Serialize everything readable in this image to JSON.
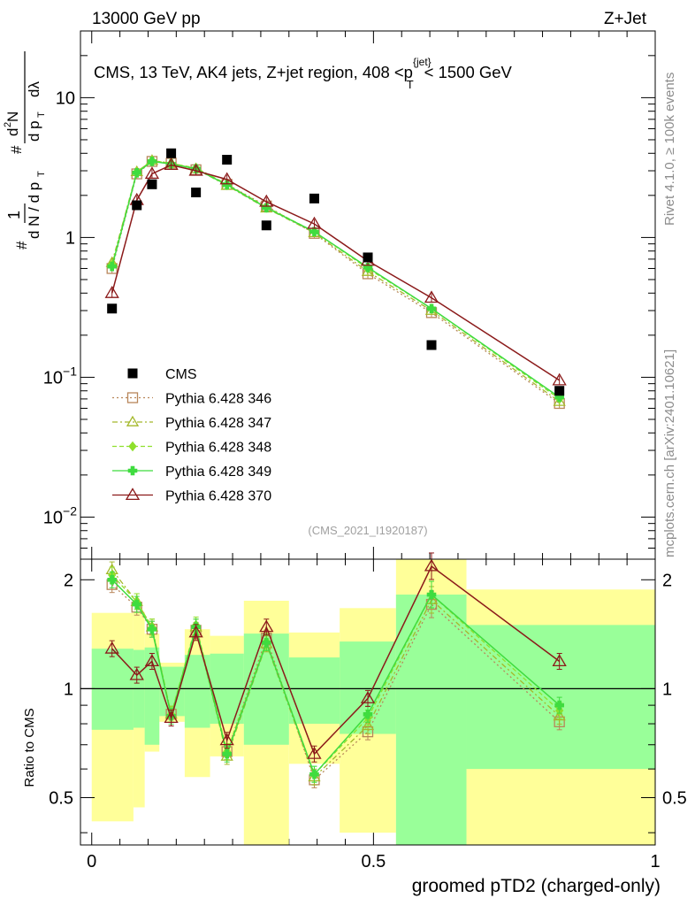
{
  "header": {
    "energy_label": "13000 GeV pp",
    "process_label": "Z+Jet",
    "rivet_label": "Rivet 4.1.0, ≥ 100k events",
    "mcplots_label": "mcplots.cern.ch [arXiv:2401.10621]",
    "analysis_id": "(CMS_2021_I1920187)"
  },
  "colors": {
    "cms": "#000000",
    "p346": "#b8865a",
    "p347": "#a4b82a",
    "p348": "#8fe02c",
    "p349": "#3fdc3f",
    "p370": "#8b1a1a",
    "band_yellow": "#ffff99",
    "band_green": "#99ff99"
  },
  "chart_data": {
    "type": "line",
    "title": "CMS, 13 TeV, AK4 jets, Z+jet region, 408 <p_T^{jet}< 1500 GeV",
    "title_parts": {
      "main": "CMS, 13 TeV, AK4 jets, Z+jet region, 408 <p",
      "sup": "{jet}",
      "sub": "T",
      "tail": "< 1500 GeV"
    },
    "xlabel": "groomed pTD2 (charged-only)",
    "ylabel_main": "1/N dN/dp_T d^2N/dp_T dλ",
    "ylabel_ratio": "Ratio to CMS",
    "xlim": [
      -0.02,
      1.0
    ],
    "ylim_main": [
      0.005,
      30
    ],
    "ylim_ratio": [
      0.37,
      2.28
    ],
    "yscale": "log",
    "x_ticks": [
      0,
      0.5,
      1
    ],
    "x_tick_labels": [
      "0",
      "0.5",
      "1"
    ],
    "main_y_ticks": [
      0.01,
      0.1,
      1,
      10
    ],
    "main_y_tick_labels": [
      {
        "base": "10",
        "exp": "−2"
      },
      {
        "base": "10",
        "exp": "−1"
      },
      {
        "base": "1",
        "exp": ""
      },
      {
        "base": "10",
        "exp": ""
      }
    ],
    "ratio_y_ticks": [
      0.5,
      1,
      2
    ],
    "ratio_y_tick_labels": [
      "0.5",
      "1",
      "2"
    ],
    "cms": {
      "name": "CMS",
      "x": [
        0.036,
        0.08,
        0.107,
        0.141,
        0.185,
        0.24,
        0.31,
        0.395,
        0.49,
        0.603,
        0.83
      ],
      "x_edges": [
        0.0,
        0.074,
        0.094,
        0.12,
        0.165,
        0.21,
        0.27,
        0.35,
        0.44,
        0.54,
        0.665,
        1.0
      ],
      "y": [
        0.31,
        1.7,
        2.4,
        4.0,
        2.1,
        3.6,
        1.22,
        1.9,
        0.72,
        0.17,
        0.08
      ],
      "band_green": [
        [
          0.77,
          1.29
        ],
        [
          0.78,
          1.28
        ],
        [
          0.7,
          1.3
        ],
        [
          0.84,
          1.15
        ],
        [
          0.78,
          1.24
        ],
        [
          0.8,
          1.25
        ],
        [
          0.7,
          1.42
        ],
        [
          0.8,
          1.22
        ],
        [
          0.75,
          1.35
        ],
        [
          0.36,
          1.82
        ],
        [
          0.6,
          1.5
        ]
      ],
      "band_yellow": [
        [
          0.43,
          1.62
        ],
        [
          0.47,
          1.63
        ],
        [
          0.67,
          1.42
        ],
        [
          0.81,
          1.18
        ],
        [
          0.57,
          1.46
        ],
        [
          0.65,
          1.4
        ],
        [
          0.36,
          1.75
        ],
        [
          0.62,
          1.43
        ],
        [
          0.4,
          1.67
        ],
        [
          0.36,
          2.28
        ],
        [
          0.36,
          1.88
        ]
      ]
    },
    "series": [
      {
        "name": "Pythia 6.428 346",
        "marker": "square",
        "dash": "2,3",
        "y": [
          0.6,
          2.85,
          3.5,
          3.4,
          3.05,
          2.4,
          1.68,
          1.07,
          0.55,
          0.29,
          0.065
        ],
        "ratio": [
          1.94,
          1.68,
          1.46,
          0.85,
          1.45,
          0.67,
          1.38,
          0.56,
          0.76,
          1.71,
          0.81
        ]
      },
      {
        "name": "Pythia 6.428 347",
        "marker": "triangle",
        "dash": "6,3,2,3",
        "y": [
          0.66,
          2.95,
          3.55,
          3.4,
          3.1,
          2.35,
          1.62,
          1.08,
          0.57,
          0.3,
          0.067
        ],
        "ratio": [
          2.13,
          1.74,
          1.48,
          0.85,
          1.48,
          0.65,
          1.33,
          0.57,
          0.79,
          1.76,
          0.84
        ]
      },
      {
        "name": "Pythia 6.428 348",
        "marker": "diamond",
        "dash": "5,3",
        "y": [
          0.64,
          2.95,
          3.55,
          3.38,
          3.15,
          2.4,
          1.65,
          1.1,
          0.6,
          0.31,
          0.07
        ],
        "ratio": [
          2.06,
          1.74,
          1.48,
          0.85,
          1.5,
          0.67,
          1.35,
          0.58,
          0.83,
          1.82,
          0.87
        ]
      },
      {
        "name": "Pythia 6.428 349",
        "marker": "cross",
        "dash": "",
        "y": [
          0.62,
          2.9,
          3.5,
          3.35,
          3.1,
          2.38,
          1.63,
          1.1,
          0.61,
          0.31,
          0.072
        ],
        "ratio": [
          2.0,
          1.71,
          1.46,
          0.84,
          1.48,
          0.66,
          1.34,
          0.58,
          0.85,
          1.82,
          0.9
        ]
      },
      {
        "name": "Pythia 6.428 370",
        "marker": "open-triangle",
        "dash": "",
        "y": [
          0.4,
          1.85,
          2.85,
          3.3,
          3.0,
          2.6,
          1.8,
          1.25,
          0.68,
          0.37,
          0.095
        ],
        "ratio": [
          1.29,
          1.09,
          1.19,
          0.83,
          1.43,
          0.72,
          1.48,
          0.66,
          0.94,
          2.18,
          1.19
        ]
      }
    ]
  }
}
